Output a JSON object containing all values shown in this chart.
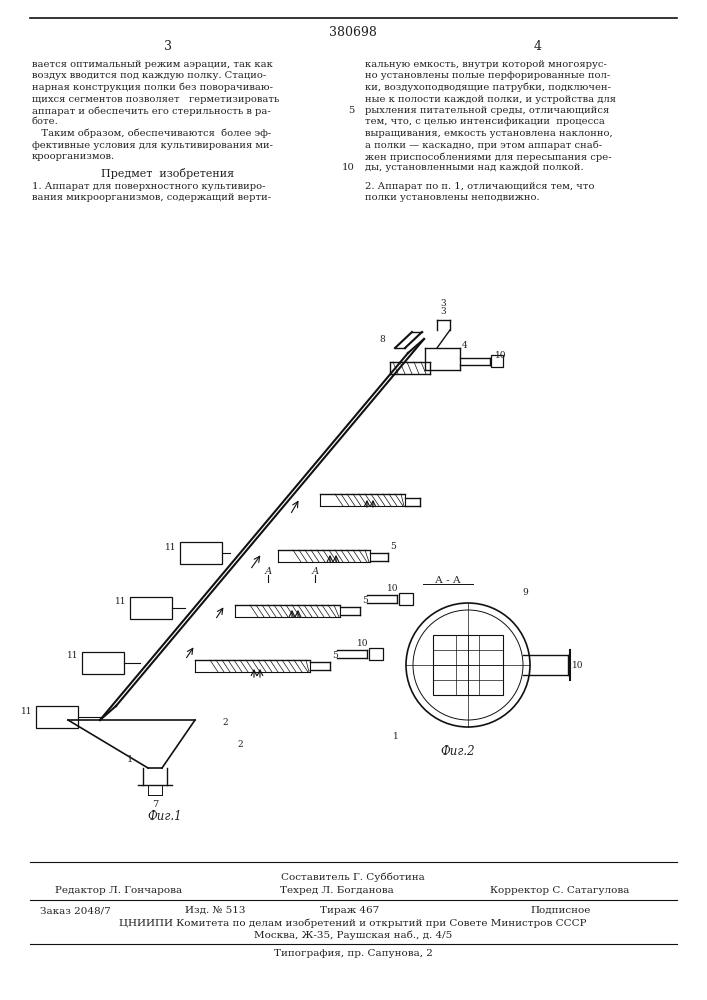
{
  "patent_number": "380698",
  "page_left": "3",
  "page_right": "4",
  "top_text_left": [
    "вается оптимальный режим аэрации, так как",
    "воздух вводится под каждую полку. Стацио-",
    "нарная конструкция полки без поворачивaю-",
    "щихся сегментов позволяет   герметизировать",
    "аппарат и обеспечить его стерильность в ра-",
    "боте.",
    "   Таким образом, обеспечиваются  более эф-",
    "фективные условия для культивирования ми-",
    "кроорганизмов."
  ],
  "top_text_right": [
    "кальную емкость, внутри которой многоярус-",
    "но установлены полые перфорированные пол-",
    "ки, воздухоподводящие патрубки, подключен-",
    "ные к полости каждой полки, и устройства для",
    "рыхления питательной среды, отличающийся",
    "тем, что, с целью интенсификации  процесса",
    "выращивания, емкость установлена наклонно,",
    "а полки — каскадно, при этом аппарат снаб-",
    "жен приспособлениями для пересыпания сре-",
    "ды, установленными над каждой полкой."
  ],
  "subject_header": "Предмет  изобретения",
  "subject_text_left": [
    "1. Аппарат для поверхностного культивиро-",
    "вания микроорганизмов, содержащий верти-"
  ],
  "subject_text_right": [
    "2. Аппарат по п. 1, отличающийся тем, что",
    "полки установлены неподвижно."
  ],
  "fig1_label": "Фиг.1",
  "fig2_label": "Фиг.2",
  "aa_label": "А - А",
  "footer_composer": "Составитель Г. Субботина",
  "footer_editor": "Редактор Л. Гончарова",
  "footer_tech": "Техред Л. Богданова",
  "footer_corrector": "Корректор С. Сатагулова",
  "footer_order": "Заказ 2048/7",
  "footer_pub": "Изд. № 513",
  "footer_circ": "Тираж 467",
  "footer_sub": "Подписное",
  "footer_org": "ЦНИИПИ Комитета по делам изобретений и открытий при Совете Министров СССР",
  "footer_addr": "Москва, Ж-35, Раушская наб., д. 4/5",
  "footer_print": "Типография, пр. Сапунова, 2",
  "bg_color": "#ffffff",
  "text_color": "#222222",
  "line_color": "#111111"
}
